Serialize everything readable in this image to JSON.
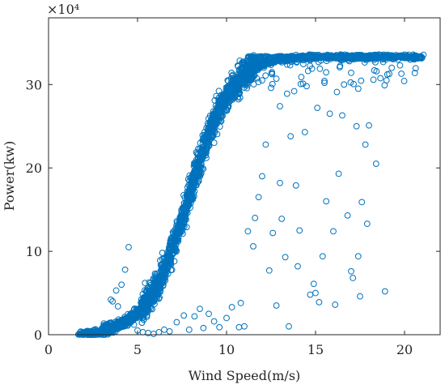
{
  "chart_data": {
    "type": "scatter",
    "xlabel": "Wind Speed(m/s)",
    "ylabel": "Power(kw)",
    "y_multiplier_label": "×10⁴",
    "xlim": [
      0,
      22
    ],
    "ylim": [
      0,
      38
    ],
    "x_ticks": [
      "0",
      "5",
      "10",
      "15",
      "20"
    ],
    "y_ticks": [
      "0",
      "10",
      "20",
      "30"
    ],
    "x_tick_values": [
      0,
      5,
      10,
      15,
      20
    ],
    "y_tick_values": [
      0,
      10,
      20,
      30
    ],
    "marker_color": "#0072BD",
    "marker": "open-circle",
    "grid": false,
    "legend": "none",
    "curve_model": {
      "description": "power curve y(x) = 33.4 / (1 + exp(-0.85*(x - 7.9))) in units of 10^4 kW, clipped at rated 33.4",
      "rated_power": 33.4,
      "x_range_dense": [
        1.8,
        21.0
      ]
    },
    "outliers": [
      [
        3.5,
        4.2
      ],
      [
        3.6,
        4.0
      ],
      [
        3.8,
        5.3
      ],
      [
        3.9,
        3.4
      ],
      [
        4.1,
        6.0
      ],
      [
        4.3,
        7.8
      ],
      [
        4.5,
        10.5
      ],
      [
        4.6,
        2.0
      ],
      [
        4.8,
        1.2
      ],
      [
        5.0,
        0.5
      ],
      [
        5.3,
        0.3
      ],
      [
        5.6,
        0.2
      ],
      [
        5.9,
        0.1
      ],
      [
        6.2,
        0.3
      ],
      [
        6.5,
        0.6
      ],
      [
        6.8,
        0.4
      ],
      [
        7.2,
        1.5
      ],
      [
        7.6,
        2.3
      ],
      [
        7.9,
        0.6
      ],
      [
        8.2,
        2.2
      ],
      [
        8.5,
        3.1
      ],
      [
        8.7,
        0.8
      ],
      [
        9.0,
        2.5
      ],
      [
        9.3,
        1.6
      ],
      [
        9.6,
        0.9
      ],
      [
        10.0,
        2.0
      ],
      [
        10.3,
        3.3
      ],
      [
        10.7,
        0.9
      ],
      [
        10.8,
        3.8
      ],
      [
        11.0,
        1.0
      ],
      [
        11.2,
        12.4
      ],
      [
        11.6,
        14.0
      ],
      [
        11.5,
        10.6
      ],
      [
        11.8,
        16.5
      ],
      [
        12.0,
        19.0
      ],
      [
        12.2,
        22.8
      ],
      [
        12.4,
        7.7
      ],
      [
        12.6,
        12.2
      ],
      [
        12.8,
        3.5
      ],
      [
        13.0,
        18.2
      ],
      [
        13.1,
        13.9
      ],
      [
        13.3,
        9.3
      ],
      [
        13.5,
        1.0
      ],
      [
        13.6,
        23.8
      ],
      [
        13.9,
        17.9
      ],
      [
        14.0,
        8.2
      ],
      [
        14.1,
        12.5
      ],
      [
        14.4,
        24.3
      ],
      [
        14.7,
        4.8
      ],
      [
        14.9,
        6.1
      ],
      [
        15.0,
        5.0
      ],
      [
        15.2,
        3.9
      ],
      [
        15.4,
        9.4
      ],
      [
        15.6,
        16.0
      ],
      [
        15.8,
        26.5
      ],
      [
        16.0,
        12.4
      ],
      [
        16.1,
        3.6
      ],
      [
        16.3,
        19.3
      ],
      [
        16.5,
        26.3
      ],
      [
        16.8,
        14.3
      ],
      [
        17.0,
        7.6
      ],
      [
        17.1,
        6.8
      ],
      [
        17.3,
        25.0
      ],
      [
        17.4,
        9.4
      ],
      [
        17.5,
        4.6
      ],
      [
        17.6,
        15.9
      ],
      [
        17.8,
        22.8
      ],
      [
        17.9,
        13.3
      ],
      [
        18.0,
        25.1
      ],
      [
        18.4,
        20.5
      ],
      [
        18.9,
        5.2
      ],
      [
        12.5,
        29.6
      ],
      [
        13.4,
        28.9
      ],
      [
        14.5,
        29.8
      ],
      [
        15.5,
        30.2
      ],
      [
        16.6,
        30.0
      ],
      [
        17.4,
        29.5
      ],
      [
        18.3,
        31.7
      ],
      [
        11.4,
        31.2
      ],
      [
        12.0,
        30.5
      ],
      [
        13.0,
        27.4
      ],
      [
        14.2,
        30.9
      ],
      [
        15.1,
        27.2
      ],
      [
        16.2,
        29.1
      ],
      [
        17.0,
        31.4
      ],
      [
        13.8,
        29.2
      ],
      [
        12.8,
        30.7
      ],
      [
        14.8,
        31.9
      ],
      [
        16.9,
        32.8
      ],
      [
        18.8,
        32.7
      ]
    ]
  }
}
